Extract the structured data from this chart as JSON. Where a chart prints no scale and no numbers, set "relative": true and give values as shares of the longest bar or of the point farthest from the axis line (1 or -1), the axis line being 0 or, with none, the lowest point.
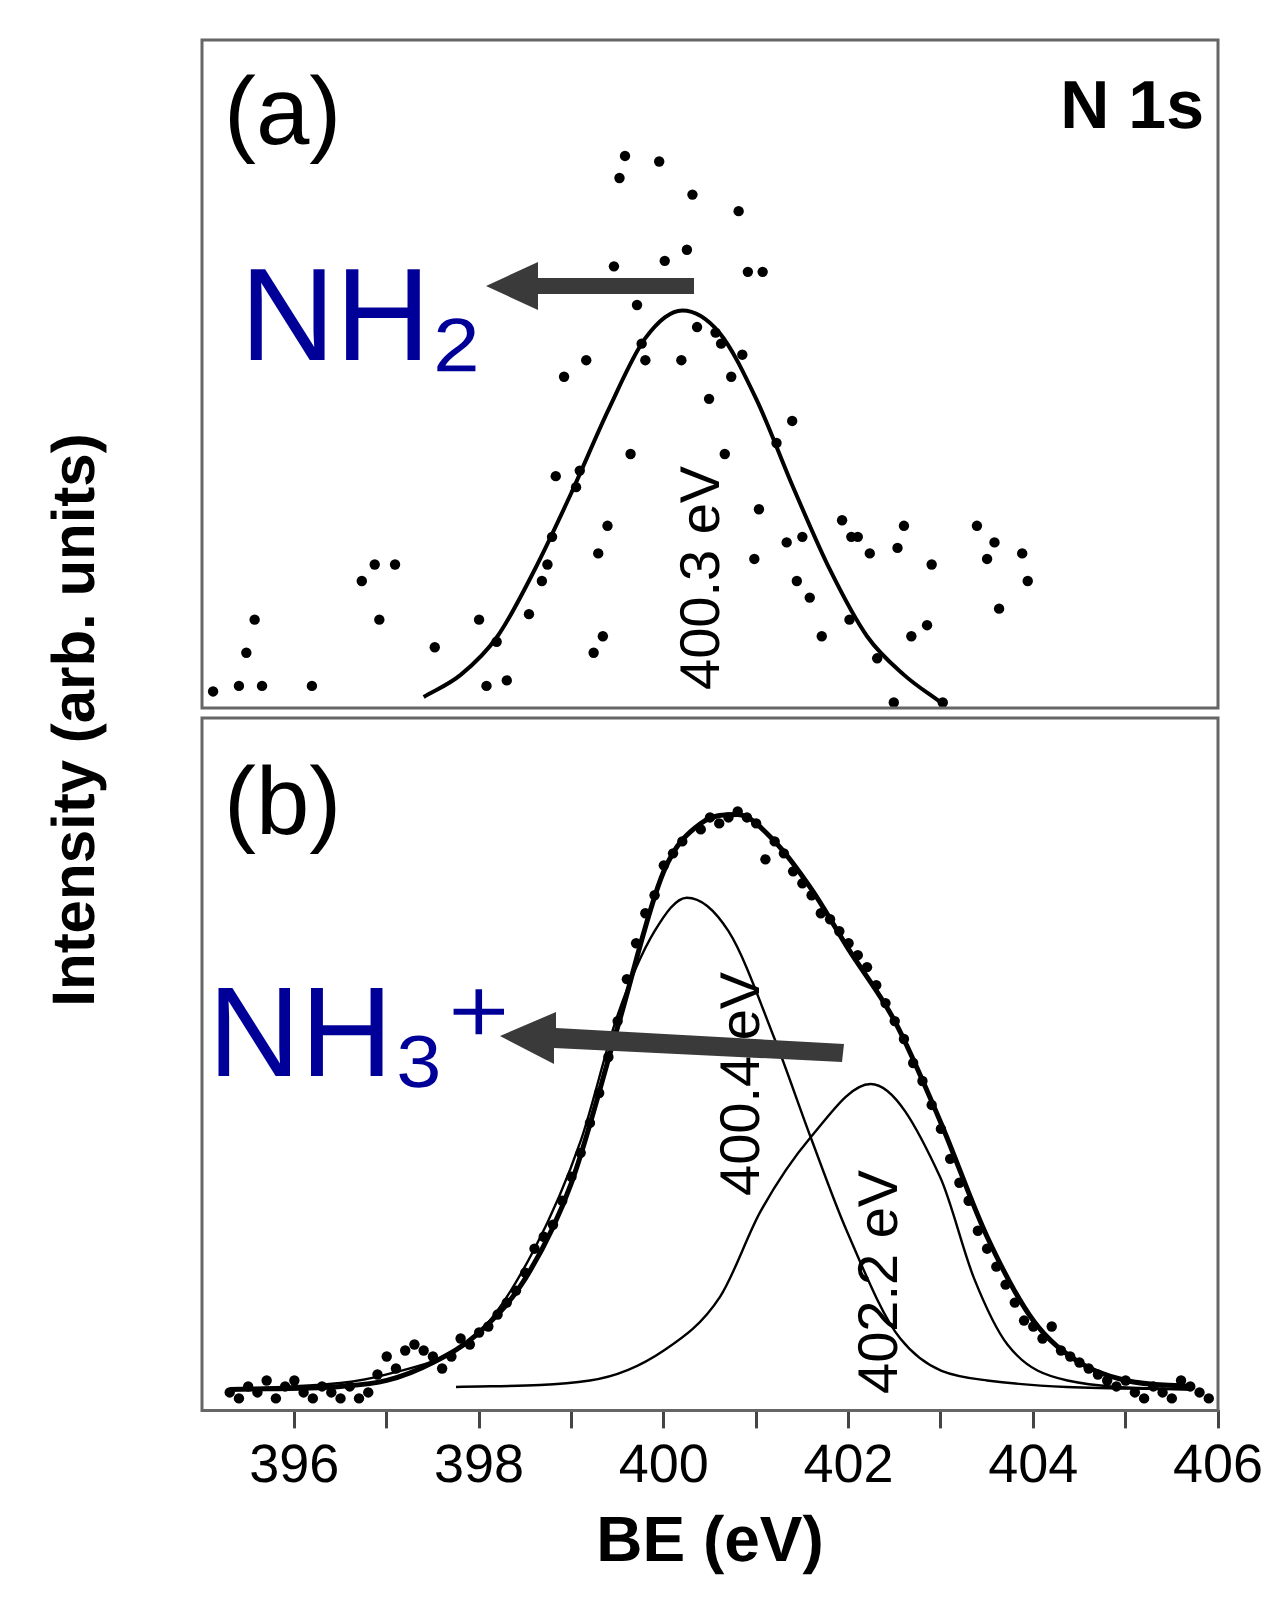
{
  "chart_data": [
    {
      "type": "scatter",
      "relative": true,
      "tick_labels": false,
      "ylabel": "Intensity (arb. units)",
      "xlim": [
        395,
        406
      ],
      "annotations": [
        "(a)",
        "N 1s",
        "NH₂",
        "400.3 eV"
      ],
      "series": [
        {
          "marker": "circle",
          "color": "#000000",
          "x": [
            395.12,
            395.4,
            395.65,
            396.19,
            395.48,
            395.57,
            396.73,
            396.87,
            397.09,
            396.92,
            397.52,
            398.0,
            398.08,
            398.3,
            398.19,
            398.54,
            398.68,
            398.74,
            398.79,
            398.83,
            399.05,
            399.09,
            398.92,
            399.16,
            399.24,
            399.34,
            399.29,
            399.39,
            399.64,
            399.76,
            399.8,
            399.71,
            399.46,
            399.52,
            399.58,
            399.95,
            400.01,
            400.25,
            400.19,
            400.31,
            400.36,
            400.49,
            400.56,
            400.62,
            400.66,
            400.73,
            400.81,
            400.85,
            400.91,
            401.07,
            400.98,
            401.03,
            401.22,
            401.39,
            401.33,
            401.5,
            401.44,
            401.58,
            401.71,
            401.93,
            402.03,
            402.1,
            402.23,
            402.01,
            402.31,
            402.53,
            402.6,
            402.9,
            402.68,
            402.85,
            402.49,
            403.02,
            403.39,
            403.58,
            403.5,
            403.88,
            403.94,
            403.63
          ],
          "values": [
            0.03,
            0.04,
            0.04,
            0.04,
            0.1,
            0.16,
            0.23,
            0.26,
            0.26,
            0.16,
            0.11,
            0.16,
            0.04,
            0.05,
            0.12,
            0.17,
            0.23,
            0.26,
            0.31,
            0.42,
            0.4,
            0.43,
            0.6,
            0.63,
            0.1,
            0.13,
            0.28,
            0.33,
            0.46,
            0.66,
            0.63,
            0.73,
            0.8,
            0.96,
            1,
            0.99,
            0.81,
            0.83,
            0.63,
            0.93,
            0.69,
            0.56,
            0.68,
            0.66,
            0.46,
            0.6,
            0.9,
            0.64,
            0.79,
            0.79,
            0.27,
            0.36,
            0.48,
            0.52,
            0.3,
            0.31,
            0.23,
            0.2,
            0.13,
            0.34,
            0.31,
            0.31,
            0.28,
            0.16,
            0.09,
            0.29,
            0.33,
            0.26,
            0.13,
            0.15,
            0.01,
            0.01,
            0.33,
            0.3,
            0.27,
            0.28,
            0.23,
            0.18
          ]
        },
        {
          "type": "line",
          "marker": "none",
          "color": "#000000",
          "x": [
            397.4,
            397.8,
            398.2,
            398.6,
            399.0,
            399.4,
            399.8,
            400.2,
            400.6,
            401.0,
            401.4,
            401.8,
            402.2,
            402.6,
            403.0
          ],
          "values": [
            0.02,
            0.06,
            0.13,
            0.25,
            0.39,
            0.54,
            0.67,
            0.72,
            0.68,
            0.56,
            0.4,
            0.25,
            0.13,
            0.06,
            0.01
          ]
        }
      ]
    },
    {
      "type": "scatter",
      "relative": true,
      "tick_labels": "x",
      "xlabel": "BE (eV)",
      "xlim": [
        395,
        406
      ],
      "xticks": [
        396,
        {
          "value": 397,
          "label": null
        },
        398,
        {
          "value": 399,
          "label": null
        },
        400,
        {
          "value": 401,
          "label": null
        },
        402,
        {
          "value": 403,
          "label": null
        },
        404,
        {
          "value": 405,
          "label": null
        },
        406
      ],
      "annotations": [
        "(b)",
        "NH₃⁺",
        "400.4 eV",
        "402.2 eV"
      ],
      "series": [
        {
          "marker": "circle",
          "color": "#000000",
          "x": [
            395.3,
            395.4,
            395.5,
            395.6,
            395.7,
            395.8,
            395.9,
            396.0,
            396.1,
            396.2,
            396.3,
            396.4,
            396.5,
            396.6,
            396.7,
            396.8,
            396.9,
            397.0,
            397.1,
            397.2,
            397.3,
            397.4,
            397.5,
            397.6,
            397.7,
            397.8,
            397.9,
            398.0,
            398.1,
            398.2,
            398.3,
            398.4,
            398.5,
            398.6,
            398.7,
            398.8,
            398.9,
            399.0,
            399.1,
            399.2,
            399.3,
            399.4,
            399.5,
            399.6,
            399.7,
            399.8,
            399.9,
            400.0,
            400.1,
            400.2,
            400.4,
            400.5,
            400.6,
            400.7,
            400.8,
            400.9,
            401.0,
            401.1,
            401.2,
            401.3,
            401.4,
            401.5,
            401.6,
            401.7,
            401.8,
            401.9,
            402.0,
            402.1,
            402.2,
            402.3,
            402.4,
            402.5,
            402.6,
            402.7,
            402.8,
            402.9,
            403.0,
            403.1,
            403.2,
            403.3,
            403.4,
            403.5,
            403.6,
            403.7,
            403.8,
            403.9,
            404.0,
            404.1,
            404.2,
            404.3,
            404.4,
            404.5,
            404.6,
            404.7,
            404.8,
            404.9,
            405.0,
            405.1,
            405.2,
            405.3,
            405.4,
            405.5,
            405.6,
            405.7,
            405.8,
            405.9
          ],
          "values": [
            0.03,
            0.02,
            0.04,
            0.03,
            0.05,
            0.02,
            0.04,
            0.05,
            0.03,
            0.02,
            0.04,
            0.03,
            0.02,
            0.04,
            0.02,
            0.03,
            0.06,
            0.09,
            0.07,
            0.1,
            0.11,
            0.1,
            0.09,
            0.07,
            0.09,
            0.12,
            0.11,
            0.13,
            0.14,
            0.16,
            0.18,
            0.2,
            0.23,
            0.27,
            0.29,
            0.31,
            0.35,
            0.39,
            0.43,
            0.48,
            0.53,
            0.59,
            0.65,
            0.72,
            0.78,
            0.83,
            0.86,
            0.91,
            0.93,
            0.95,
            0.97,
            0.99,
            0.98,
            0.99,
            1.0,
            0.99,
            0.98,
            0.92,
            0.95,
            0.93,
            0.9,
            0.88,
            0.86,
            0.83,
            0.82,
            0.8,
            0.78,
            0.76,
            0.74,
            0.71,
            0.68,
            0.65,
            0.62,
            0.58,
            0.55,
            0.51,
            0.47,
            0.42,
            0.38,
            0.35,
            0.3,
            0.27,
            0.24,
            0.21,
            0.18,
            0.15,
            0.14,
            0.12,
            0.14,
            0.1,
            0.09,
            0.08,
            0.07,
            0.06,
            0.05,
            0.04,
            0.05,
            0.03,
            0.02,
            0.04,
            0.03,
            0.02,
            0.05,
            0.04,
            0.03,
            0.02
          ]
        },
        {
          "type": "line",
          "marker": "none",
          "color": "#000000",
          "x": [
            395.3,
            396.5,
            397.0,
            397.5,
            398.0,
            398.5,
            399.0,
            399.5,
            400.0,
            400.4,
            400.8,
            401.2,
            401.6,
            402.0,
            402.5,
            403.0,
            403.5,
            404.0,
            404.5,
            405.0,
            405.7
          ],
          "values": [
            0.035,
            0.04,
            0.05,
            0.08,
            0.13,
            0.22,
            0.38,
            0.64,
            0.9,
            0.98,
            0.995,
            0.95,
            0.87,
            0.77,
            0.65,
            0.48,
            0.29,
            0.15,
            0.08,
            0.05,
            0.04
          ]
        },
        {
          "type": "line",
          "marker": "none",
          "color": "#000000",
          "x": [
            395.5,
            397.0,
            398.0,
            398.6,
            399.1,
            399.5,
            399.9,
            400.25,
            400.7,
            401.2,
            401.59,
            401.98,
            402.56,
            403.5,
            405.7
          ],
          "values": [
            0.035,
            0.06,
            0.13,
            0.27,
            0.45,
            0.66,
            0.8,
            0.856,
            0.8,
            0.62,
            0.456,
            0.3,
            0.12,
            0.05,
            0.035
          ]
        },
        {
          "type": "line",
          "marker": "none",
          "color": "#000000",
          "x": [
            397.75,
            399.2,
            400.0,
            400.61,
            401.05,
            401.59,
            402.24,
            402.99,
            403.36,
            403.72,
            404.37,
            405.7
          ],
          "values": [
            0.039,
            0.05,
            0.1,
            0.19,
            0.333,
            0.456,
            0.545,
            0.39,
            0.22,
            0.11,
            0.05,
            0.035
          ]
        }
      ]
    }
  ]
}
